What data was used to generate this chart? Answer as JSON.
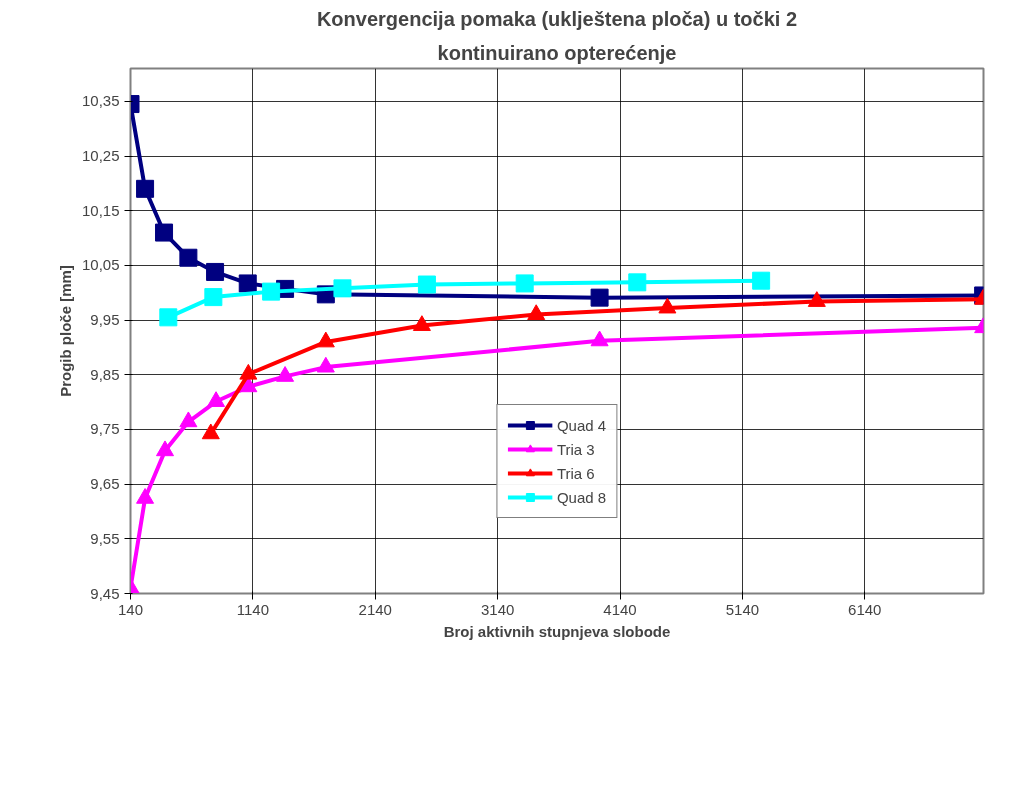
{
  "chart_data": {
    "type": "line",
    "title": "Konvergencija pomaka (uklještena ploča) u točki 2",
    "subtitle": "kontinuirano opterećenje",
    "xlabel": "Broj aktivnih stupnjeva slobode",
    "ylabel": "Progib ploče [mm]",
    "xlim": [
      140,
      7110
    ],
    "ylim": [
      9.45,
      10.41
    ],
    "xticks": [
      140,
      1140,
      2140,
      3140,
      4140,
      5140,
      6140
    ],
    "yticks": [
      {
        "value": 9.45,
        "label": "9,45"
      },
      {
        "value": 9.55,
        "label": "9,55"
      },
      {
        "value": 9.65,
        "label": "9,65"
      },
      {
        "value": 9.75,
        "label": "9,75"
      },
      {
        "value": 9.85,
        "label": "9,85"
      },
      {
        "value": 9.95,
        "label": "9,95"
      },
      {
        "value": 10.05,
        "label": "10,05"
      },
      {
        "value": 10.15,
        "label": "10,15"
      },
      {
        "value": 10.25,
        "label": "10,25"
      },
      {
        "value": 10.35,
        "label": "10,35"
      }
    ],
    "grid": true,
    "legend": "bottom",
    "line_style": "solid",
    "series": [
      {
        "name": "Quad 4",
        "color": "#000080",
        "marker": "square",
        "x": [
          140,
          259,
          414,
          613,
          831,
          1098,
          1403,
          1736,
          3973,
          7107
        ],
        "values": [
          10.345,
          10.19,
          10.11,
          10.064,
          10.038,
          10.017,
          10.007,
          9.997,
          9.991,
          9.995
        ]
      },
      {
        "name": "Tria 3",
        "color": "#ff00ff",
        "marker": "triangle",
        "x": [
          140,
          259,
          422,
          613,
          839,
          1103,
          1403,
          1736,
          3973,
          7107
        ],
        "values": [
          9.46,
          9.624,
          9.711,
          9.764,
          9.801,
          9.828,
          9.847,
          9.864,
          9.912,
          9.936
        ]
      },
      {
        "name": "Tria 6",
        "color": "#ff0000",
        "marker": "triangle",
        "x": [
          796,
          1103,
          1736,
          2521,
          3455,
          4527,
          5748,
          7107
        ],
        "values": [
          9.742,
          9.851,
          9.91,
          9.94,
          9.96,
          9.972,
          9.984,
          9.988
        ]
      },
      {
        "name": "Quad 8",
        "color": "#00ffff",
        "marker": "square",
        "x": [
          449,
          817,
          1289,
          1872,
          2562,
          3361,
          4281,
          5293
        ],
        "values": [
          9.955,
          9.992,
          10.002,
          10.008,
          10.015,
          10.017,
          10.019,
          10.022
        ]
      }
    ]
  }
}
